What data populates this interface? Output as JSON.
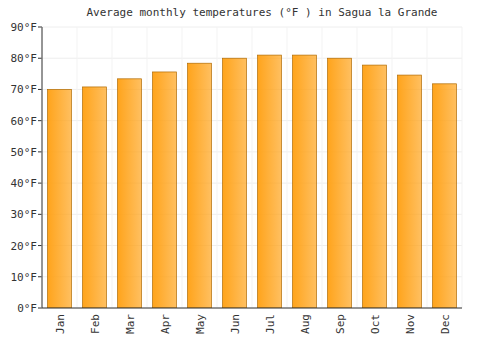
{
  "chart_data": {
    "type": "bar",
    "title": "Average monthly temperatures (°F ) in Sagua la Grande",
    "categories": [
      "Jan",
      "Feb",
      "Mar",
      "Apr",
      "May",
      "Jun",
      "Jul",
      "Aug",
      "Sep",
      "Oct",
      "Nov",
      "Dec"
    ],
    "values": [
      70,
      70.8,
      73.4,
      75.6,
      78.4,
      80,
      81,
      81,
      80,
      77.8,
      74.6,
      71.8
    ],
    "color": "#ffa41c",
    "ylim": [
      0,
      90
    ],
    "yticks": [
      {
        "value": 0,
        "label": "0°F"
      },
      {
        "value": 10,
        "label": "10°F"
      },
      {
        "value": 20,
        "label": "20°F"
      },
      {
        "value": 30,
        "label": "30°F"
      },
      {
        "value": 40,
        "label": "40°F"
      },
      {
        "value": 50,
        "label": "50°F"
      },
      {
        "value": 60,
        "label": "60°F"
      },
      {
        "value": 70,
        "label": "70°F"
      },
      {
        "value": 80,
        "label": "80°F"
      },
      {
        "value": 90,
        "label": "90°F"
      }
    ],
    "grid": true
  }
}
